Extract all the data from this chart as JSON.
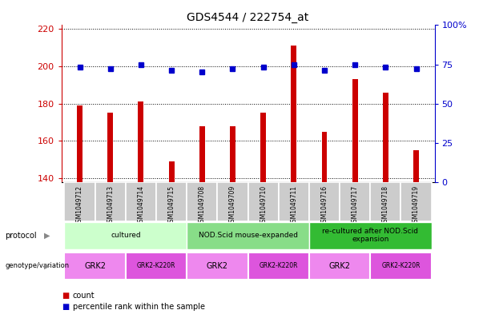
{
  "title": "GDS4544 / 222754_at",
  "samples": [
    "GSM1049712",
    "GSM1049713",
    "GSM1049714",
    "GSM1049715",
    "GSM1049708",
    "GSM1049709",
    "GSM1049710",
    "GSM1049711",
    "GSM1049716",
    "GSM1049717",
    "GSM1049718",
    "GSM1049719"
  ],
  "counts": [
    179,
    175,
    181,
    149,
    168,
    168,
    175,
    211,
    165,
    193,
    186,
    155
  ],
  "percentile_ranks": [
    73,
    72,
    75,
    71,
    70,
    72,
    73,
    75,
    71,
    75,
    73,
    72
  ],
  "ylim_left": [
    138,
    222
  ],
  "ylim_right": [
    0,
    100
  ],
  "yticks_left": [
    140,
    160,
    180,
    200,
    220
  ],
  "yticks_right": [
    0,
    25,
    50,
    75,
    100
  ],
  "bar_color": "#cc0000",
  "dot_color": "#0000cc",
  "protocol_groups": [
    {
      "label": "cultured",
      "start": 0,
      "end": 3,
      "color": "#ccffcc"
    },
    {
      "label": "NOD.Scid mouse-expanded",
      "start": 4,
      "end": 7,
      "color": "#88dd88"
    },
    {
      "label": "re-cultured after NOD.Scid\nexpansion",
      "start": 8,
      "end": 11,
      "color": "#33bb33"
    }
  ],
  "genotype_groups": [
    {
      "label": "GRK2",
      "start": 0,
      "end": 1,
      "color": "#ee88ee"
    },
    {
      "label": "GRK2-K220R",
      "start": 2,
      "end": 3,
      "color": "#dd55dd"
    },
    {
      "label": "GRK2",
      "start": 4,
      "end": 5,
      "color": "#ee88ee"
    },
    {
      "label": "GRK2-K220R",
      "start": 6,
      "end": 7,
      "color": "#dd55dd"
    },
    {
      "label": "GRK2",
      "start": 8,
      "end": 9,
      "color": "#ee88ee"
    },
    {
      "label": "GRK2-K220R",
      "start": 10,
      "end": 11,
      "color": "#dd55dd"
    }
  ],
  "background_color": "#ffffff",
  "tick_color_left": "#cc0000",
  "tick_color_right": "#0000cc",
  "sample_bg_color": "#cccccc",
  "bar_width": 0.18
}
